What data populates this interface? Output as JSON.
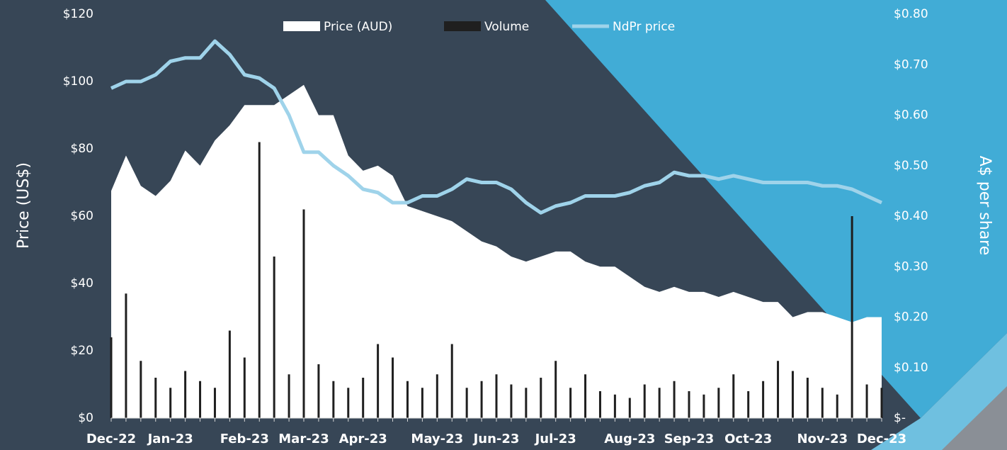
{
  "chart_data": {
    "type": "combo",
    "ylabel": "Price (US$)",
    "y2label": "A$ per share",
    "categories": [
      "Dec-22",
      null,
      null,
      null,
      "Jan-23",
      null,
      null,
      null,
      null,
      "Feb-23",
      null,
      null,
      null,
      "Mar-23",
      null,
      null,
      null,
      "Apr-23",
      null,
      null,
      null,
      null,
      "May-23",
      null,
      null,
      null,
      "Jun-23",
      null,
      null,
      null,
      "Jul-23",
      null,
      null,
      null,
      null,
      "Aug-23",
      null,
      null,
      null,
      "Sep-23",
      null,
      null,
      null,
      "Oct-23",
      null,
      null,
      null,
      null,
      "Nov-23",
      null,
      null,
      null,
      "Dec-23"
    ],
    "ylim": [
      0,
      120
    ],
    "yticks": [
      {
        "value": 0,
        "label": "$0"
      },
      {
        "value": 20,
        "label": "$20"
      },
      {
        "value": 40,
        "label": "$40"
      },
      {
        "value": 60,
        "label": "$60"
      },
      {
        "value": 80,
        "label": "$80"
      },
      {
        "value": 100,
        "label": "$100"
      },
      {
        "value": 120,
        "label": "$120"
      }
    ],
    "y2lim": [
      0,
      0.8
    ],
    "y2ticks": [
      {
        "value": 0,
        "label": "$-"
      },
      {
        "value": 0.1,
        "label": "$0.10"
      },
      {
        "value": 0.2,
        "label": "$0.20"
      },
      {
        "value": 0.3,
        "label": "$0.30"
      },
      {
        "value": 0.4,
        "label": "$0.40"
      },
      {
        "value": 0.5,
        "label": "$0.50"
      },
      {
        "value": 0.6,
        "label": "$0.60"
      },
      {
        "value": 0.7,
        "label": "$0.70"
      },
      {
        "value": 0.8,
        "label": "$0.80"
      }
    ],
    "series": [
      {
        "name": "Price (AUD)",
        "type": "area",
        "axis": "y2",
        "color": "#ffffff",
        "values": [
          0.45,
          0.52,
          0.46,
          0.44,
          0.47,
          0.53,
          0.5,
          0.55,
          0.58,
          0.62,
          0.62,
          0.62,
          0.64,
          0.66,
          0.6,
          0.6,
          0.52,
          0.49,
          0.5,
          0.48,
          0.42,
          0.41,
          0.4,
          0.39,
          0.37,
          0.35,
          0.34,
          0.32,
          0.31,
          0.32,
          0.33,
          0.33,
          0.31,
          0.3,
          0.3,
          0.28,
          0.26,
          0.25,
          0.26,
          0.25,
          0.25,
          0.24,
          0.25,
          0.24,
          0.23,
          0.23,
          0.2,
          0.21,
          0.21,
          0.2,
          0.19,
          0.2,
          0.2
        ]
      },
      {
        "name": "Volume",
        "type": "bar",
        "color": "#1f1f1f",
        "values": [
          24,
          37,
          17,
          12,
          9,
          14,
          11,
          9,
          26,
          18,
          82,
          48,
          13,
          62,
          16,
          11,
          9,
          12,
          22,
          18,
          11,
          9,
          13,
          22,
          9,
          11,
          13,
          10,
          9,
          12,
          17,
          9,
          13,
          8,
          7,
          6,
          10,
          9,
          11,
          8,
          7,
          9,
          13,
          8,
          11,
          17,
          14,
          12,
          9,
          7,
          60,
          10,
          9
        ]
      },
      {
        "name": "NdPr price",
        "type": "line",
        "color": "#9fd3ea",
        "values": [
          98,
          100,
          100,
          102,
          106,
          107,
          107,
          112,
          108,
          102,
          101,
          98,
          90,
          79,
          79,
          75,
          72,
          68,
          67,
          64,
          64,
          66,
          66,
          68,
          71,
          70,
          70,
          68,
          64,
          61,
          63,
          64,
          66,
          66,
          66,
          67,
          69,
          70,
          73,
          72,
          72,
          71,
          72,
          71,
          70,
          70,
          70,
          70,
          69,
          69,
          68,
          66,
          64
        ]
      }
    ]
  }
}
